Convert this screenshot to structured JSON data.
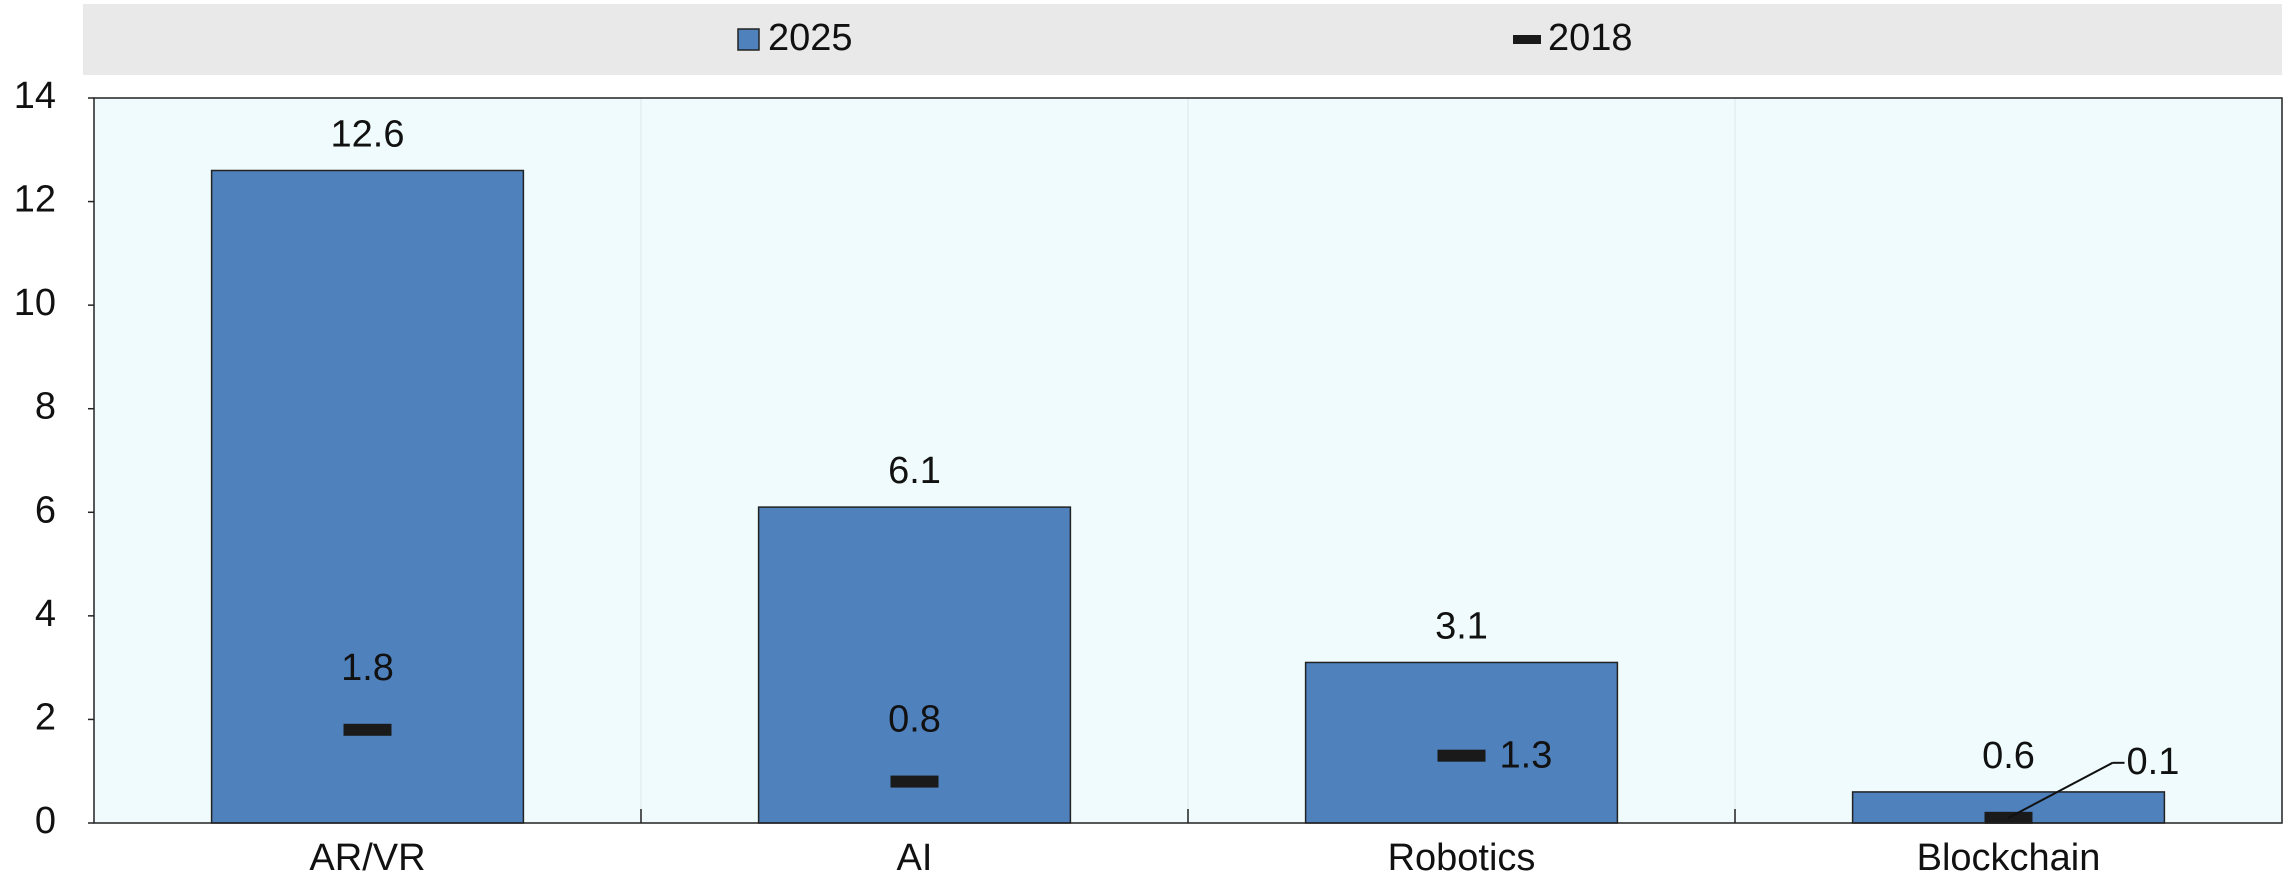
{
  "chart_data": {
    "type": "bar",
    "categories": [
      "AR/VR",
      "AI",
      "Robotics",
      "Blockchain"
    ],
    "series": [
      {
        "name": "2025",
        "color": "#4f81bd",
        "values": [
          12.6,
          6.1,
          3.1,
          0.6
        ]
      },
      {
        "name": "2018",
        "color": "#1a1a1a",
        "values": [
          1.8,
          0.8,
          1.3,
          0.1
        ]
      }
    ],
    "ylim": [
      0,
      14
    ],
    "yticks": [
      0,
      2,
      4,
      6,
      8,
      10,
      12,
      14
    ],
    "legend": "top"
  }
}
